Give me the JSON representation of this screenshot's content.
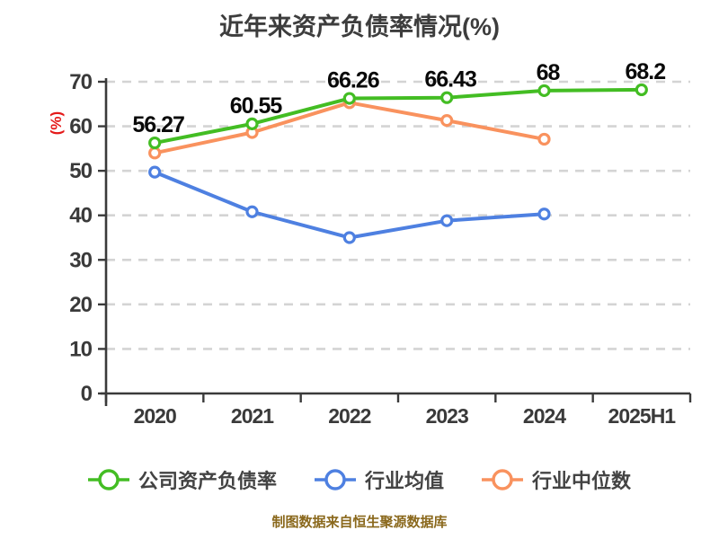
{
  "title": "近年来资产负债率情况(%)",
  "y_axis_label": "(%)",
  "footer": "制图数据来自恒生聚源数据库",
  "colors": {
    "company_line": "#43bd23",
    "industry_avg_line": "#4e80e1",
    "industry_median_line": "#f9925e",
    "axis": "#3a3a3a",
    "gridline": "#d4d4d4",
    "title_text": "#3d3d3d",
    "y_axis_label_text": "#e41a1a",
    "footer_text": "#8a681c",
    "data_label_text": "#0a0a0a",
    "marker_fill": "#ffffff"
  },
  "chart_data": {
    "type": "line",
    "title": "近年来资产负债率情况(%)",
    "categories": [
      "2020",
      "2021",
      "2022",
      "2023",
      "2024",
      "2025H1"
    ],
    "series": [
      {
        "name": "公司资产负债率",
        "color": "#43bd23",
        "values": [
          56.27,
          60.55,
          66.26,
          66.43,
          68,
          68.2
        ],
        "labels": [
          "56.27",
          "60.55",
          "66.26",
          "66.43",
          "68",
          "68.2"
        ]
      },
      {
        "name": "行业均值",
        "color": "#4e80e1",
        "values": [
          49.7,
          40.8,
          35,
          38.8,
          40.3,
          null
        ],
        "labels": null
      },
      {
        "name": "行业中位数",
        "color": "#f9925e",
        "values": [
          54,
          58.6,
          65.3,
          61.3,
          57.1,
          null
        ],
        "labels": null
      }
    ],
    "ylabel": "(%)",
    "ylim": [
      0,
      70
    ],
    "ytick_interval": 10,
    "ytick_labels": [
      "0",
      "10",
      "20",
      "30",
      "40",
      "50",
      "60",
      "70"
    ],
    "grid": true,
    "grid_style": "dashed",
    "legend_position": "bottom",
    "source_note": "制图数据来自恒生聚源数据库"
  }
}
